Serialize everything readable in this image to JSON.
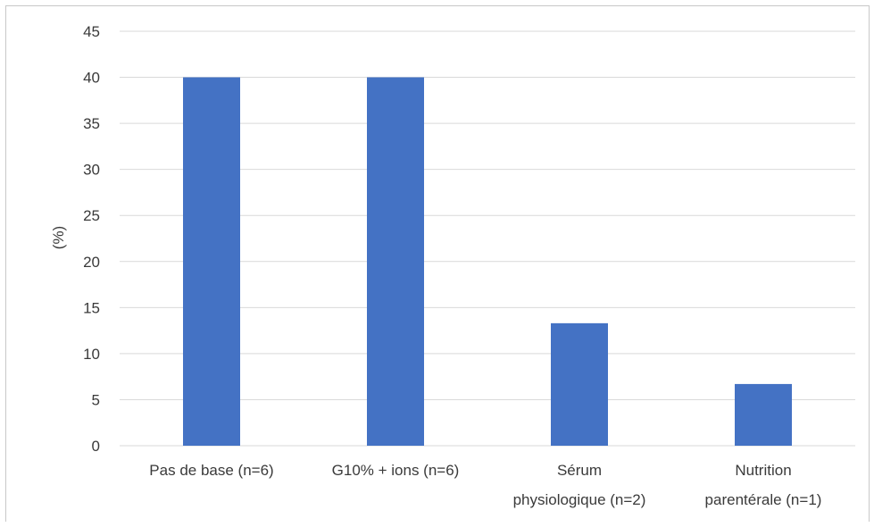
{
  "chart_data": {
    "type": "bar",
    "categories": [
      "Pas de base (n=6)",
      "G10% + ions (n=6)",
      "Sérum physiologique (n=2)",
      "Nutrition parentérale (n=1)"
    ],
    "category_label_lines": [
      [
        "Pas de base (n=6)"
      ],
      [
        "G10% + ions (n=6)"
      ],
      [
        "Sérum",
        "physiologique (n=2)"
      ],
      [
        "Nutrition",
        "parentérale (n=1)"
      ]
    ],
    "values": [
      40,
      40,
      13.3,
      6.7
    ],
    "ylabel": "(%)",
    "xlabel": "",
    "ylim": [
      0,
      45
    ],
    "yticks": [
      0,
      5,
      10,
      15,
      20,
      25,
      30,
      35,
      40,
      45
    ],
    "grid": true,
    "legend": "none",
    "bar_color": "#4472c4"
  }
}
